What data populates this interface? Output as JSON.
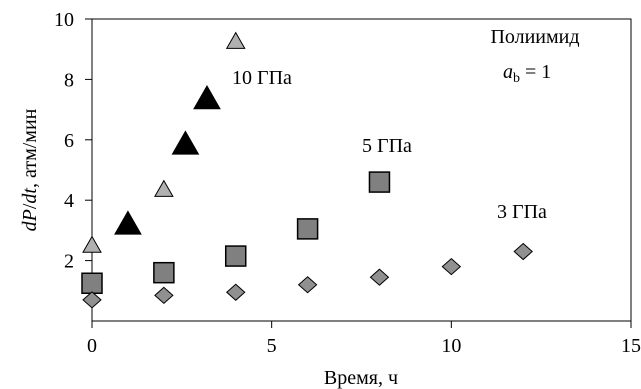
{
  "chart_data": {
    "type": "scatter",
    "xlabel": "Время, ч",
    "ylabel_parts": [
      "dP",
      "/",
      "dt",
      ", атм/мин"
    ],
    "xlim": [
      0,
      15
    ],
    "ylim": [
      0,
      10
    ],
    "xticks": [
      0,
      5,
      10,
      15
    ],
    "yticks": [
      2,
      4,
      6,
      8,
      10
    ],
    "grid": "none",
    "annotations": {
      "material": "Полиимид",
      "param_symbol": "a",
      "param_subscript": "b",
      "param_rest": " = 1"
    },
    "series": [
      {
        "name": "10 ГПа",
        "marker": "triangle",
        "points": [
          {
            "x": 0,
            "y": 2.5,
            "color": "#b0b0b0"
          },
          {
            "x": 1,
            "y": 3.2,
            "color": "#000000"
          },
          {
            "x": 2,
            "y": 4.35,
            "color": "#b0b0b0"
          },
          {
            "x": 2.6,
            "y": 5.85,
            "color": "#000000"
          },
          {
            "x": 3.2,
            "y": 7.35,
            "color": "#000000"
          },
          {
            "x": 4,
            "y": 9.25,
            "color": "#b0b0b0"
          }
        ]
      },
      {
        "name": "5 ГПа",
        "marker": "square",
        "color": "#808080",
        "points": [
          {
            "x": 0,
            "y": 1.25
          },
          {
            "x": 2,
            "y": 1.6
          },
          {
            "x": 4,
            "y": 2.15
          },
          {
            "x": 6,
            "y": 3.05
          },
          {
            "x": 8,
            "y": 4.6
          }
        ]
      },
      {
        "name": "3 ГПа",
        "marker": "diamond",
        "color": "#909090",
        "points": [
          {
            "x": 0,
            "y": 0.7
          },
          {
            "x": 2,
            "y": 0.85
          },
          {
            "x": 4,
            "y": 0.95
          },
          {
            "x": 6,
            "y": 1.2
          },
          {
            "x": 8,
            "y": 1.45
          },
          {
            "x": 10,
            "y": 1.8
          },
          {
            "x": 12,
            "y": 2.3
          }
        ]
      }
    ]
  }
}
